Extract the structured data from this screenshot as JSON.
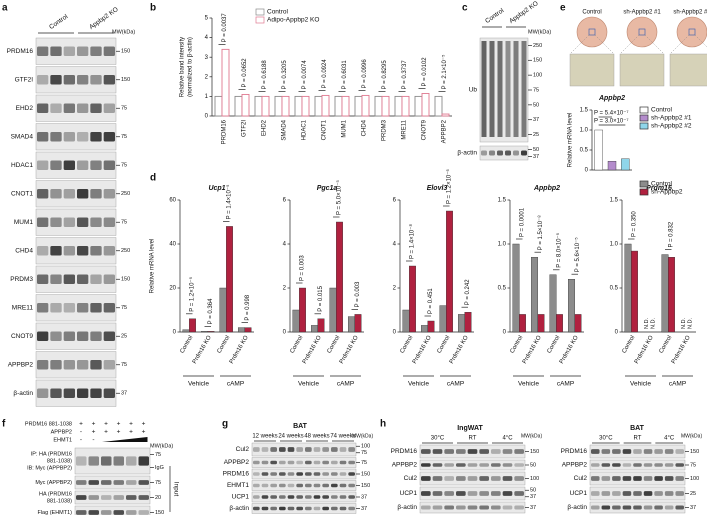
{
  "panel_labels": [
    "a",
    "b",
    "c",
    "d",
    "e",
    "f",
    "g",
    "h"
  ],
  "panel_a": {
    "columns": [
      "Control",
      "Appbp2 KO"
    ],
    "mw_unit": "MW(kDa)",
    "rows": [
      {
        "name": "PRDM16",
        "mw": [
          "150"
        ]
      },
      {
        "name": "GTF2I",
        "mw": [
          "150"
        ]
      },
      {
        "name": "EHD2",
        "mw": [
          "75"
        ]
      },
      {
        "name": "SMAD4",
        "mw": [
          "75"
        ]
      },
      {
        "name": "HDAC1",
        "mw": [
          "75"
        ]
      },
      {
        "name": "CNOT1",
        "mw": [
          "250"
        ]
      },
      {
        "name": "MUM1",
        "mw": [
          "75"
        ]
      },
      {
        "name": "CHD4",
        "mw": [
          "250"
        ]
      },
      {
        "name": "PRDM3",
        "mw": [
          "150"
        ]
      },
      {
        "name": "MRE11",
        "mw": [
          "75"
        ]
      },
      {
        "name": "CNOT9",
        "mw": [
          "25"
        ]
      },
      {
        "name": "APPBP2",
        "mw": [
          "75"
        ]
      },
      {
        "name": "β-actin",
        "mw": [
          "37"
        ]
      }
    ]
  },
  "panel_c": {
    "columns": [
      "Control",
      "Appbp2 KO"
    ],
    "mw_unit": "MW(kDa)",
    "rows": [
      {
        "name": "Ub",
        "mw": [
          "250",
          "150",
          "100",
          "75",
          "50",
          "37",
          "25"
        ]
      },
      {
        "name": "β-actin",
        "mw": [
          "50",
          "37"
        ]
      }
    ]
  },
  "panel_e_images": {
    "labels": [
      "Control",
      "sh-Appbp2 #1",
      "sh-Appbp2 #2"
    ]
  },
  "panel_f": {
    "conditions": [
      {
        "name": "PRDM16 881-1038",
        "marks": [
          "+",
          "+",
          "+",
          "+",
          "+",
          "+"
        ]
      },
      {
        "name": "APPBP2",
        "marks": [
          "-",
          "+",
          "+",
          "+",
          "+",
          "+"
        ]
      },
      {
        "name": "EHMT1",
        "marks": [
          "-",
          "-"
        ]
      }
    ],
    "mw_unit": "MW(kDa)",
    "rows": [
      {
        "name": [
          "IP: HA (PRDM16",
          "881-1038)",
          "IB: Myc (APPBP2)"
        ],
        "mw": [
          "75",
          "IgG"
        ]
      },
      {
        "name": [
          "Myc (APPBP2)"
        ],
        "mw": [
          "75"
        ]
      },
      {
        "name": [
          "HA (PRDM16",
          "881-1038)"
        ],
        "mw": [
          "20"
        ]
      },
      {
        "name": [
          "Flag (EHMT1)"
        ],
        "mw": [
          "150"
        ]
      }
    ],
    "input_label": "Input"
  },
  "panel_g": {
    "title": "BAT",
    "columns": [
      "12 weeks",
      "24 weeks",
      "48 weeks",
      "74 weeks"
    ],
    "mw_unit": "MW(kDa)",
    "rows": [
      {
        "name": "Cul2",
        "mw": [
          "100",
          "75"
        ]
      },
      {
        "name": "APPBP2",
        "mw": [
          "75"
        ]
      },
      {
        "name": "PRDM16",
        "mw": [
          "150"
        ]
      },
      {
        "name": "EHMT1",
        "mw": [
          "150"
        ]
      },
      {
        "name": "UCP1",
        "mw": [
          "37"
        ]
      },
      {
        "name": "β-actin",
        "mw": [
          "37"
        ]
      }
    ]
  },
  "panel_h": [
    {
      "title": "IngWAT",
      "columns": [
        "30°C",
        "RT",
        "4°C"
      ],
      "mw_unit": "MW(kDa)",
      "rows": [
        {
          "name": "PRDM16",
          "mw": [
            "150"
          ]
        },
        {
          "name": "APPBP2",
          "mw": [
            "50"
          ]
        },
        {
          "name": "Cul2",
          "mw": [
            "100"
          ]
        },
        {
          "name": "UCP1",
          "mw": [
            "50",
            "37"
          ]
        },
        {
          "name": "β-actin",
          "mw": [
            "37"
          ]
        }
      ]
    },
    {
      "title": "BAT",
      "columns": [
        "30°C",
        "RT",
        "4°C"
      ],
      "mw_unit": "MW(kDa)",
      "rows": [
        {
          "name": "PRDM16",
          "mw": [
            "150"
          ]
        },
        {
          "name": "APPBP2",
          "mw": [
            "75"
          ]
        },
        {
          "name": "Cul2",
          "mw": [
            "100"
          ]
        },
        {
          "name": "UCP1",
          "mw": [
            "25"
          ]
        },
        {
          "name": "β-actin",
          "mw": [
            "37"
          ]
        }
      ]
    }
  ],
  "chart_data": [
    {
      "type": "bar",
      "hollow": true,
      "ylabel": [
        "Relative band intensity",
        "(normalized to β-actin)"
      ],
      "categories": [
        "PRDM16",
        "GTF2I",
        "EHD2",
        "SMAD4",
        "HDAC1",
        "CNOT1",
        "MUM1",
        "CHD4",
        "PRDM3",
        "MRE11",
        "CNOT9",
        "APPBP2"
      ],
      "series": [
        {
          "name": "Control",
          "color": "#8a8a8a",
          "values": [
            1,
            1,
            1,
            1,
            1,
            1,
            1,
            1,
            1,
            1,
            1,
            1
          ]
        },
        {
          "name": "Adipo-Appbp2 KO",
          "color": "#e07890",
          "values": [
            3.4,
            1.1,
            1.0,
            1.0,
            1.0,
            1.05,
            1.0,
            1.05,
            1.0,
            1.0,
            1.15,
            0.1
          ]
        }
      ],
      "ylim": [
        0,
        5
      ],
      "yticks": [
        0,
        1,
        2,
        3,
        4,
        5
      ],
      "legend": true,
      "annotations": [
        "P = 0.0037",
        "P = 0.0652",
        "P = 0.6188",
        "P = 0.3205",
        "P = 0.0074",
        "P = 0.0924",
        "P = 0.6031",
        "P = 0.0996",
        "P = 0.8295",
        "P = 0.3737",
        "P = 0.0102",
        "P = 2.1×10⁻⁵"
      ]
    },
    {
      "type": "bar",
      "title": "Ucp1",
      "ylabel": [
        "Relative mRNA level"
      ],
      "categories": [
        "Control",
        "Prdm16 KO",
        "Control",
        "Prdm16 KO"
      ],
      "groups": [
        "Vehicle",
        "cAMP"
      ],
      "series": [
        {
          "color": "#8c8c8c",
          "values": [
            1,
            0.3,
            20,
            2
          ]
        },
        {
          "color": "#b0213f",
          "values": [
            6,
            0.3,
            48,
            2
          ]
        }
      ],
      "ylim": [
        0,
        60
      ],
      "yticks": [
        0,
        20,
        40,
        60
      ],
      "annotations": [
        "P = 1.2×10⁻⁵",
        "P = 0.364",
        "P = 1.4×10⁻⁵",
        "P = 0.998"
      ]
    },
    {
      "type": "bar",
      "title": "Pgc1a",
      "categories": [
        "Control",
        "Prdm16 KO",
        "Control",
        "Prdm16 KO"
      ],
      "groups": [
        "Vehicle",
        "cAMP"
      ],
      "series": [
        {
          "color": "#8c8c8c",
          "values": [
            1,
            0.3,
            2,
            0.7
          ]
        },
        {
          "color": "#b0213f",
          "values": [
            2,
            0.6,
            5,
            0.8
          ]
        }
      ],
      "ylim": [
        0,
        6
      ],
      "yticks": [
        0,
        2,
        4,
        6
      ],
      "annotations": [
        "P = 0.003",
        "P = 0.015",
        "P = 5.0×10⁻⁵",
        "P = 0.003"
      ]
    },
    {
      "type": "bar",
      "title": "Elovl3",
      "categories": [
        "Control",
        "Prdm16 KO",
        "Control",
        "Prdm16 KO"
      ],
      "groups": [
        "Vehicle",
        "cAMP"
      ],
      "series": [
        {
          "color": "#8c8c8c",
          "values": [
            1,
            0.3,
            1.2,
            0.8
          ]
        },
        {
          "color": "#b0213f",
          "values": [
            3,
            0.5,
            5.5,
            0.9
          ]
        }
      ],
      "ylim": [
        0,
        6
      ],
      "yticks": [
        0,
        2,
        4,
        6
      ],
      "annotations": [
        "P = 1.4×10⁻⁸",
        "P = 0.451",
        "P = 1.2×10⁻⁶",
        "P = 0.242"
      ]
    },
    {
      "type": "bar",
      "title": "Appbp2",
      "categories": [
        "Control",
        "Prdm16 KO",
        "Control",
        "Prdm16 KO"
      ],
      "groups": [
        "Vehicle",
        "cAMP"
      ],
      "series": [
        {
          "color": "#8c8c8c",
          "values": [
            1,
            0.85,
            0.65,
            0.6
          ]
        },
        {
          "color": "#b0213f",
          "values": [
            0.2,
            0.2,
            0.2,
            0.2
          ]
        }
      ],
      "ylim": [
        0,
        1.5
      ],
      "yticks": [
        0,
        0.5,
        {
          "value": 1,
          "label": "1.0"
        },
        1.5
      ],
      "annotations": [
        "P = 0.0001",
        "P = 1.5×10⁻⁸",
        "P = 8.0×10⁻⁵",
        "P = 5.6×10⁻⁵"
      ]
    },
    {
      "type": "bar",
      "title": "Prdm16",
      "categories": [
        "Control",
        "Prdm16 KO",
        "Control",
        "Prdm16 KO"
      ],
      "groups": [
        "Vehicle",
        "cAMP"
      ],
      "legend": true,
      "series": [
        {
          "name": "Control",
          "color": "#8c8c8c",
          "values": [
            1,
            null,
            0.88,
            null
          ],
          "value_labels": [
            null,
            "N.D.",
            null,
            "N.D."
          ]
        },
        {
          "name": "sh-Appbp2",
          "color": "#b0213f",
          "values": [
            0.92,
            null,
            0.85,
            null
          ],
          "value_labels": [
            null,
            "N.D.",
            null,
            "N.D."
          ]
        }
      ],
      "ylim": [
        0,
        1.5
      ],
      "yticks": [
        0,
        0.5,
        {
          "value": 1,
          "label": "1.0"
        },
        1.5
      ],
      "annotations": [
        "P = 0.350",
        null,
        "P = 0.832",
        null
      ]
    },
    {
      "type": "bar",
      "title": "Appbp2",
      "ylabel": [
        "Relative mRNA level"
      ],
      "legend": true,
      "series": [
        {
          "name": "Control",
          "color": "#ffffff",
          "values": [
            1.0
          ]
        },
        {
          "name": "sh-Appbp2 #1",
          "color": "#b48ccc",
          "values": [
            0.22
          ]
        },
        {
          "name": "sh-Appbp2 #2",
          "color": "#8fd6ea",
          "values": [
            0.28
          ]
        }
      ],
      "ylim": [
        0,
        1.5
      ],
      "yticks": [
        0,
        0.5,
        {
          "value": 1,
          "label": "1.0"
        },
        1.5
      ],
      "annotations": [
        "P = 5.4×10⁻⁷",
        "P = 3.0×10⁻⁷"
      ]
    }
  ]
}
